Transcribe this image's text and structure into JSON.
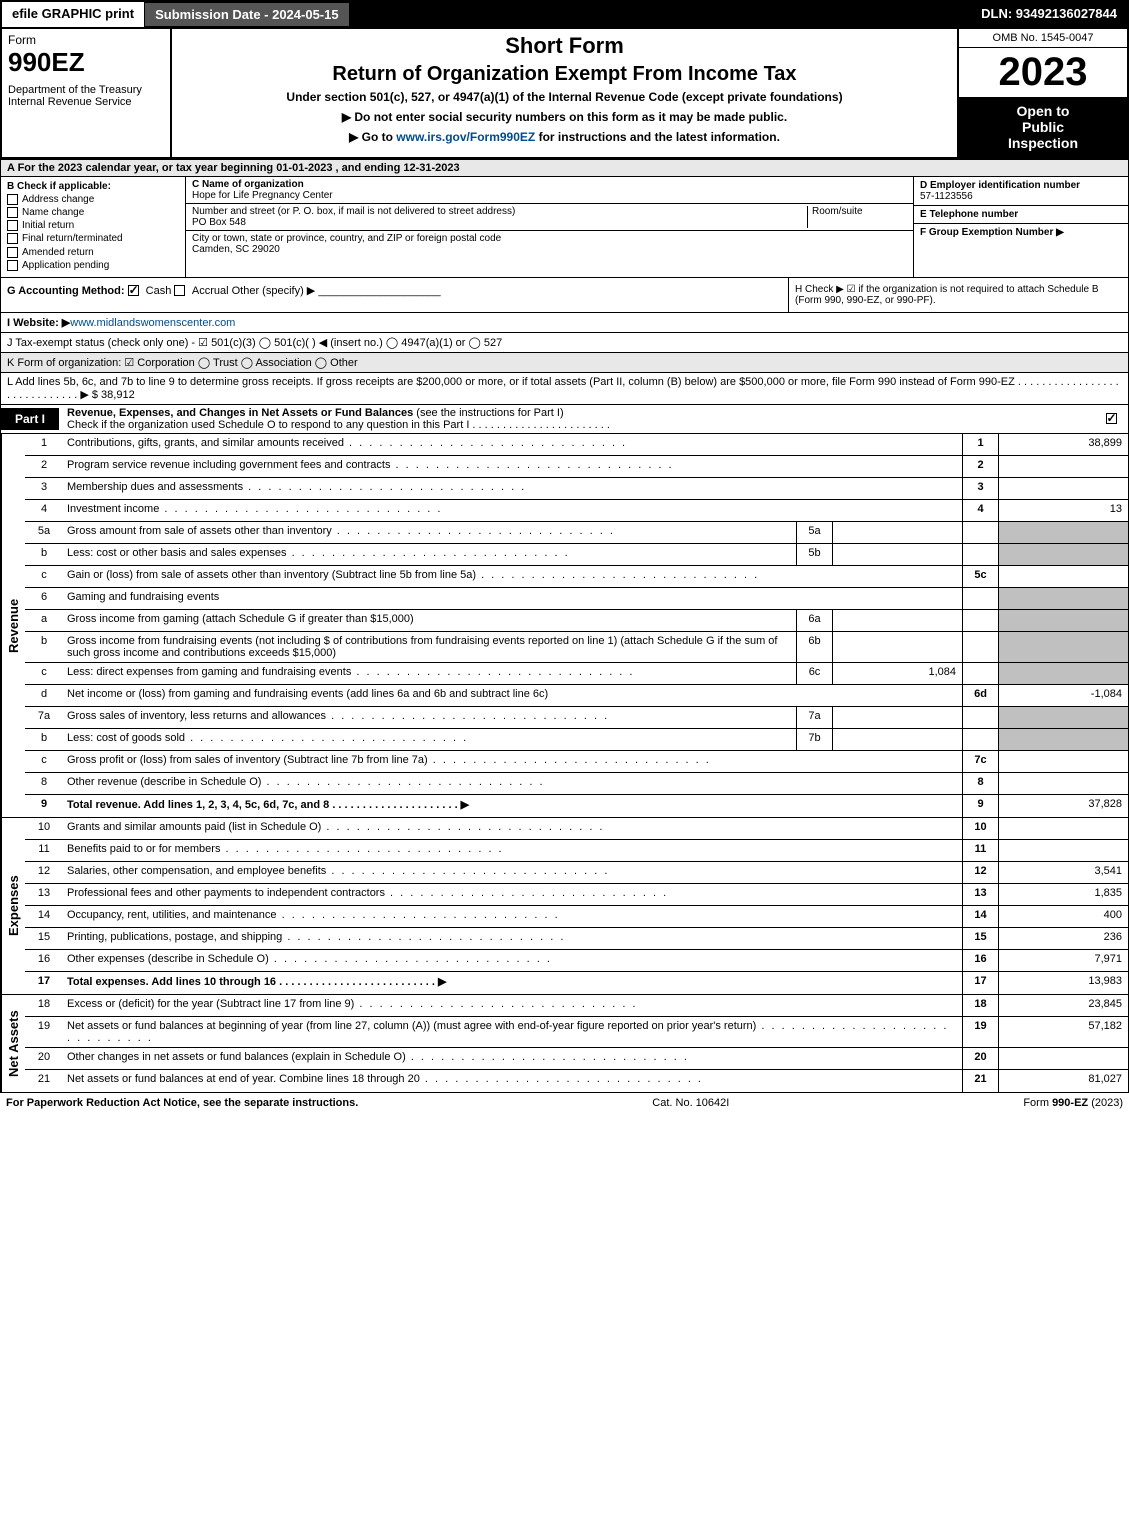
{
  "topbar": {
    "efile": "efile GRAPHIC print",
    "submission": "Submission Date - 2024-05-15",
    "dln": "DLN: 93492136027844"
  },
  "header": {
    "form_word": "Form",
    "form_num": "990EZ",
    "dept": "Department of the Treasury",
    "irs": "Internal Revenue Service",
    "short_form": "Short Form",
    "return_title": "Return of Organization Exempt From Income Tax",
    "subtitle": "Under section 501(c), 527, or 4947(a)(1) of the Internal Revenue Code (except private foundations)",
    "note1": "▶ Do not enter social security numbers on this form as it may be made public.",
    "note2_pre": "▶ Go to ",
    "note2_link": "www.irs.gov/Form990EZ",
    "note2_post": " for instructions and the latest information.",
    "omb": "OMB No. 1545-0047",
    "year": "2023",
    "inspect1": "Open to",
    "inspect2": "Public",
    "inspect3": "Inspection"
  },
  "section_a": "A  For the 2023 calendar year, or tax year beginning 01-01-2023 , and ending 12-31-2023",
  "section_b": {
    "label": "B  Check if applicable:",
    "items": [
      "Address change",
      "Name change",
      "Initial return",
      "Final return/terminated",
      "Amended return",
      "Application pending"
    ]
  },
  "section_c": {
    "name_label": "C Name of organization",
    "name": "Hope for Life Pregnancy Center",
    "street_label": "Number and street (or P. O. box, if mail is not delivered to street address)",
    "street": "PO Box 548",
    "room_label": "Room/suite",
    "city_label": "City or town, state or province, country, and ZIP or foreign postal code",
    "city": "Camden, SC  29020"
  },
  "section_de": {
    "d_label": "D Employer identification number",
    "d_val": "57-1123556",
    "e_label": "E Telephone number",
    "f_label": "F Group Exemption Number   ▶"
  },
  "row_g": {
    "label": "G Accounting Method:",
    "cash": "Cash",
    "accrual": "Accrual",
    "other": "Other (specify) ▶"
  },
  "row_h": "H  Check ▶  ☑  if the organization is not required to attach Schedule B (Form 990, 990-EZ, or 990-PF).",
  "row_i": {
    "label": "I Website: ▶",
    "val": "www.midlandswomenscenter.com"
  },
  "row_j": "J Tax-exempt status (check only one) -  ☑ 501(c)(3)  ◯ 501(c)(  ) ◀ (insert no.)  ◯ 4947(a)(1) or  ◯ 527",
  "row_k": "K Form of organization:   ☑ Corporation   ◯ Trust   ◯ Association   ◯ Other",
  "row_l": {
    "text": "L Add lines 5b, 6c, and 7b to line 9 to determine gross receipts. If gross receipts are $200,000 or more, or if total assets (Part II, column (B) below) are $500,000 or more, file Form 990 instead of Form 990-EZ . . . . . . . . . . . . . . . . . . . . . . . . . . . . . ▶ $",
    "val": "38,912"
  },
  "part1": {
    "tab": "Part I",
    "title_bold": "Revenue, Expenses, and Changes in Net Assets or Fund Balances",
    "title_rest": " (see the instructions for Part I)",
    "subtitle": "Check if the organization used Schedule O to respond to any question in this Part I . . . . . . . . . . . . . . . . . . . . . . ."
  },
  "revenue_label": "Revenue",
  "expenses_label": "Expenses",
  "netassets_label": "Net Assets",
  "lines": {
    "l1": {
      "n": "1",
      "d": "Contributions, gifts, grants, and similar amounts received",
      "box": "1",
      "v": "38,899"
    },
    "l2": {
      "n": "2",
      "d": "Program service revenue including government fees and contracts",
      "box": "2",
      "v": ""
    },
    "l3": {
      "n": "3",
      "d": "Membership dues and assessments",
      "box": "3",
      "v": ""
    },
    "l4": {
      "n": "4",
      "d": "Investment income",
      "box": "4",
      "v": "13"
    },
    "l5a": {
      "n": "5a",
      "d": "Gross amount from sale of assets other than inventory",
      "sub": "5a",
      "sv": ""
    },
    "l5b": {
      "n": "b",
      "d": "Less: cost or other basis and sales expenses",
      "sub": "5b",
      "sv": ""
    },
    "l5c": {
      "n": "c",
      "d": "Gain or (loss) from sale of assets other than inventory (Subtract line 5b from line 5a)",
      "box": "5c",
      "v": ""
    },
    "l6": {
      "n": "6",
      "d": "Gaming and fundraising events"
    },
    "l6a": {
      "n": "a",
      "d": "Gross income from gaming (attach Schedule G if greater than $15,000)",
      "sub": "6a",
      "sv": ""
    },
    "l6b": {
      "n": "b",
      "d": "Gross income from fundraising events (not including $                       of contributions from fundraising events reported on line 1) (attach Schedule G if the sum of such gross income and contributions exceeds $15,000)",
      "sub": "6b",
      "sv": ""
    },
    "l6c": {
      "n": "c",
      "d": "Less: direct expenses from gaming and fundraising events",
      "sub": "6c",
      "sv": "1,084"
    },
    "l6d": {
      "n": "d",
      "d": "Net income or (loss) from gaming and fundraising events (add lines 6a and 6b and subtract line 6c)",
      "box": "6d",
      "v": "-1,084"
    },
    "l7a": {
      "n": "7a",
      "d": "Gross sales of inventory, less returns and allowances",
      "sub": "7a",
      "sv": ""
    },
    "l7b": {
      "n": "b",
      "d": "Less: cost of goods sold",
      "sub": "7b",
      "sv": ""
    },
    "l7c": {
      "n": "c",
      "d": "Gross profit or (loss) from sales of inventory (Subtract line 7b from line 7a)",
      "box": "7c",
      "v": ""
    },
    "l8": {
      "n": "8",
      "d": "Other revenue (describe in Schedule O)",
      "box": "8",
      "v": ""
    },
    "l9": {
      "n": "9",
      "d": "Total revenue. Add lines 1, 2, 3, 4, 5c, 6d, 7c, and 8   . . . . . . . . . . . . . . . . . . . . . ▶",
      "box": "9",
      "v": "37,828"
    },
    "l10": {
      "n": "10",
      "d": "Grants and similar amounts paid (list in Schedule O)",
      "box": "10",
      "v": ""
    },
    "l11": {
      "n": "11",
      "d": "Benefits paid to or for members",
      "box": "11",
      "v": ""
    },
    "l12": {
      "n": "12",
      "d": "Salaries, other compensation, and employee benefits",
      "box": "12",
      "v": "3,541"
    },
    "l13": {
      "n": "13",
      "d": "Professional fees and other payments to independent contractors",
      "box": "13",
      "v": "1,835"
    },
    "l14": {
      "n": "14",
      "d": "Occupancy, rent, utilities, and maintenance",
      "box": "14",
      "v": "400"
    },
    "l15": {
      "n": "15",
      "d": "Printing, publications, postage, and shipping",
      "box": "15",
      "v": "236"
    },
    "l16": {
      "n": "16",
      "d": "Other expenses (describe in Schedule O)",
      "box": "16",
      "v": "7,971"
    },
    "l17": {
      "n": "17",
      "d": "Total expenses. Add lines 10 through 16   . . . . . . . . . . . . . . . . . . . . . . . . . . ▶",
      "box": "17",
      "v": "13,983"
    },
    "l18": {
      "n": "18",
      "d": "Excess or (deficit) for the year (Subtract line 17 from line 9)",
      "box": "18",
      "v": "23,845"
    },
    "l19": {
      "n": "19",
      "d": "Net assets or fund balances at beginning of year (from line 27, column (A)) (must agree with end-of-year figure reported on prior year's return)",
      "box": "19",
      "v": "57,182"
    },
    "l20": {
      "n": "20",
      "d": "Other changes in net assets or fund balances (explain in Schedule O)",
      "box": "20",
      "v": ""
    },
    "l21": {
      "n": "21",
      "d": "Net assets or fund balances at end of year. Combine lines 18 through 20",
      "box": "21",
      "v": "81,027"
    }
  },
  "footer": {
    "left": "For Paperwork Reduction Act Notice, see the separate instructions.",
    "mid": "Cat. No. 10642I",
    "right_pre": "Form ",
    "right_bold": "990-EZ",
    "right_post": " (2023)"
  }
}
